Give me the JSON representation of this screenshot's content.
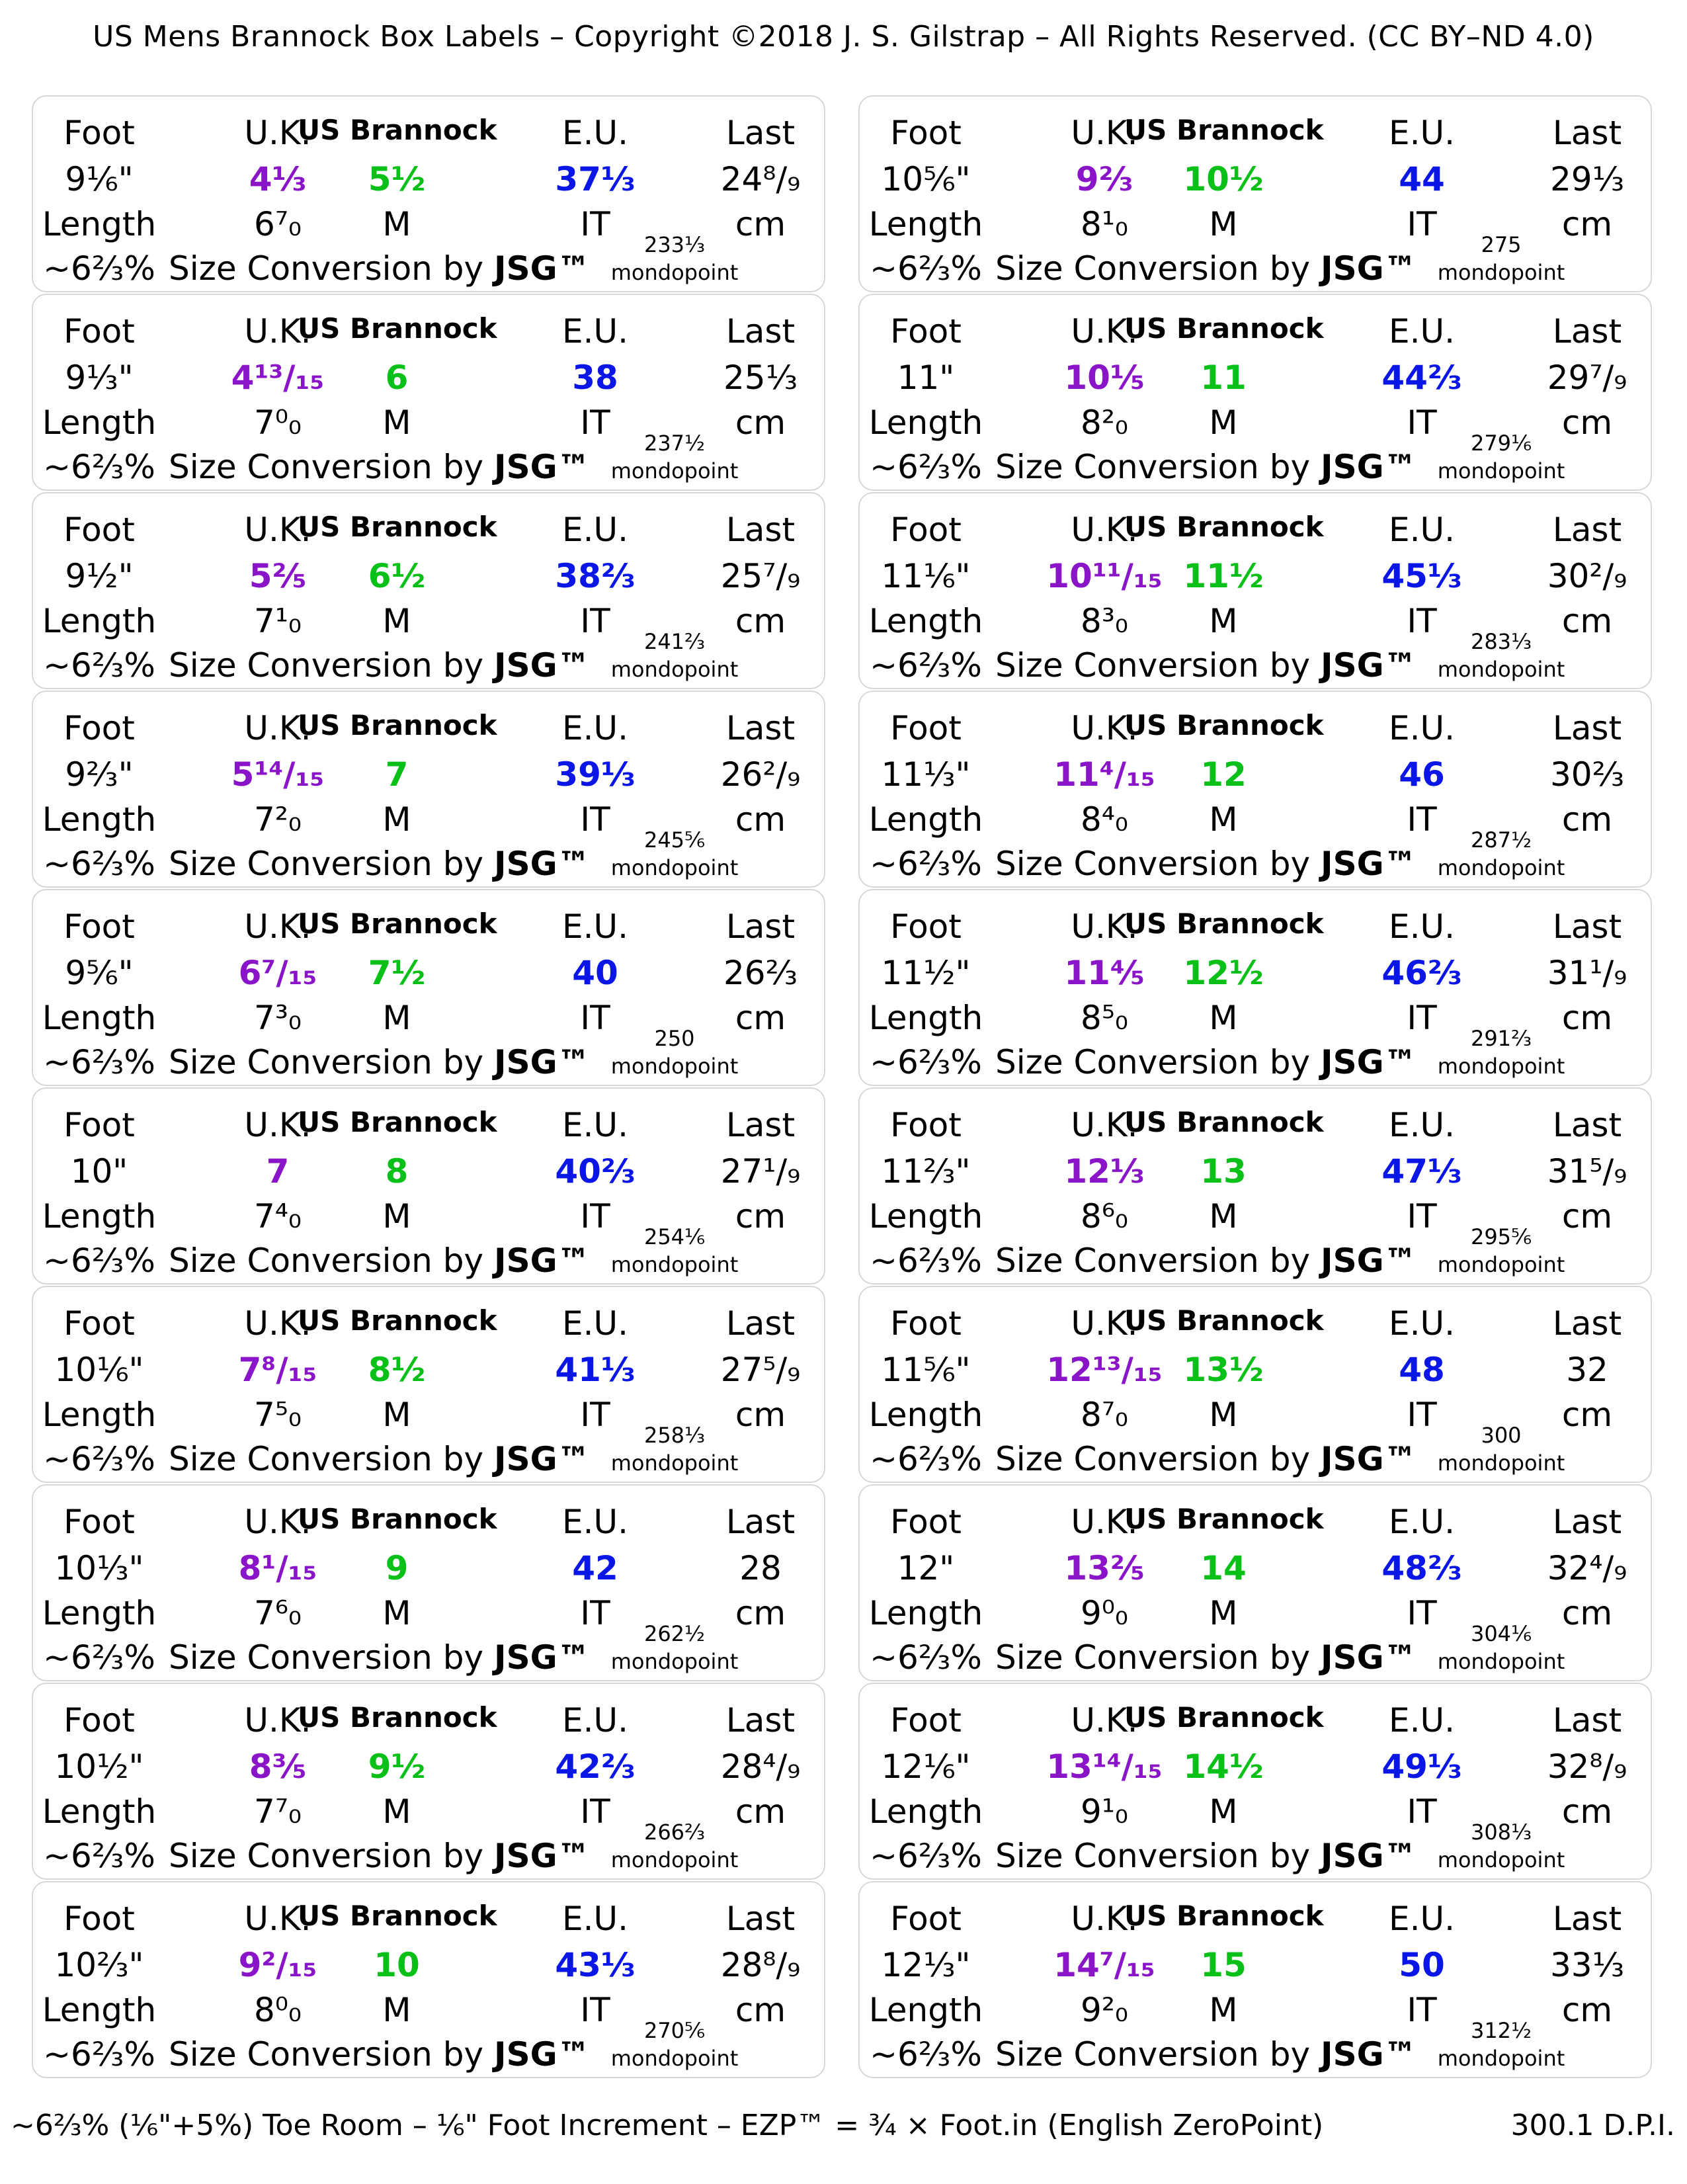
{
  "header": "US Mens Brannock Box Labels – Copyright ©2018  J. S. Gilstrap – All Rights Reserved. (CC BY–ND 4.0)",
  "footer": "~6⅔% (⅙\"+5%) Toe Room – ⅙\" Foot Increment – EZP™ = ¾ × Foot.in (English ZeroPoint)",
  "dpi": "300.1 D.P.I.",
  "common": {
    "foot": "Foot",
    "uk": "U.K.",
    "us_brannock": "US Brannock",
    "eu": "E.U.",
    "last": "Last",
    "length": "Length",
    "width": "M",
    "it": "IT",
    "cm": "cm",
    "toe_room": "~6⅔%",
    "size_conv": "Size Conversion by ",
    "jsg": "JSG™",
    "mondopoint": "mondopoint"
  },
  "colors": {
    "uk": "#8a15c8",
    "us": "#08c018",
    "eu": "#0a16e6",
    "border": "#d7d7d7"
  },
  "labels": [
    {
      "foot": "9⅙\"",
      "uk": "4⅓",
      "us": "5½",
      "eu": "37⅓",
      "last": "24⁸/₉",
      "ezp": "6⁷₀",
      "mondo": "233⅓"
    },
    {
      "foot": "10⅚\"",
      "uk": "9⅔",
      "us": "10½",
      "eu": "44",
      "last": "29⅓",
      "ezp": "8¹₀",
      "mondo": "275"
    },
    {
      "foot": "9⅓\"",
      "uk": "4¹³/₁₅",
      "us": "6",
      "eu": "38",
      "last": "25⅓",
      "ezp": "7⁰₀",
      "mondo": "237½"
    },
    {
      "foot": "11\"",
      "uk": "10⅕",
      "us": "11",
      "eu": "44⅔",
      "last": "29⁷/₉",
      "ezp": "8²₀",
      "mondo": "279⅙"
    },
    {
      "foot": "9½\"",
      "uk": "5⅖",
      "us": "6½",
      "eu": "38⅔",
      "last": "25⁷/₉",
      "ezp": "7¹₀",
      "mondo": "241⅔"
    },
    {
      "foot": "11⅙\"",
      "uk": "10¹¹/₁₅",
      "us": "11½",
      "eu": "45⅓",
      "last": "30²/₉",
      "ezp": "8³₀",
      "mondo": "283⅓"
    },
    {
      "foot": "9⅔\"",
      "uk": "5¹⁴/₁₅",
      "us": "7",
      "eu": "39⅓",
      "last": "26²/₉",
      "ezp": "7²₀",
      "mondo": "245⅚"
    },
    {
      "foot": "11⅓\"",
      "uk": "11⁴/₁₅",
      "us": "12",
      "eu": "46",
      "last": "30⅔",
      "ezp": "8⁴₀",
      "mondo": "287½"
    },
    {
      "foot": "9⅚\"",
      "uk": "6⁷/₁₅",
      "us": "7½",
      "eu": "40",
      "last": "26⅔",
      "ezp": "7³₀",
      "mondo": "250"
    },
    {
      "foot": "11½\"",
      "uk": "11⅘",
      "us": "12½",
      "eu": "46⅔",
      "last": "31¹/₉",
      "ezp": "8⁵₀",
      "mondo": "291⅔"
    },
    {
      "foot": "10\"",
      "uk": "7",
      "us": "8",
      "eu": "40⅔",
      "last": "27¹/₉",
      "ezp": "7⁴₀",
      "mondo": "254⅙"
    },
    {
      "foot": "11⅔\"",
      "uk": "12⅓",
      "us": "13",
      "eu": "47⅓",
      "last": "31⁵/₉",
      "ezp": "8⁶₀",
      "mondo": "295⅚"
    },
    {
      "foot": "10⅙\"",
      "uk": "7⁸/₁₅",
      "us": "8½",
      "eu": "41⅓",
      "last": "27⁵/₉",
      "ezp": "7⁵₀",
      "mondo": "258⅓"
    },
    {
      "foot": "11⅚\"",
      "uk": "12¹³/₁₅",
      "us": "13½",
      "eu": "48",
      "last": "32",
      "ezp": "8⁷₀",
      "mondo": "300"
    },
    {
      "foot": "10⅓\"",
      "uk": "8¹/₁₅",
      "us": "9",
      "eu": "42",
      "last": "28",
      "ezp": "7⁶₀",
      "mondo": "262½"
    },
    {
      "foot": "12\"",
      "uk": "13⅖",
      "us": "14",
      "eu": "48⅔",
      "last": "32⁴/₉",
      "ezp": "9⁰₀",
      "mondo": "304⅙"
    },
    {
      "foot": "10½\"",
      "uk": "8⅗",
      "us": "9½",
      "eu": "42⅔",
      "last": "28⁴/₉",
      "ezp": "7⁷₀",
      "mondo": "266⅔"
    },
    {
      "foot": "12⅙\"",
      "uk": "13¹⁴/₁₅",
      "us": "14½",
      "eu": "49⅓",
      "last": "32⁸/₉",
      "ezp": "9¹₀",
      "mondo": "308⅓"
    },
    {
      "foot": "10⅔\"",
      "uk": "9²/₁₅",
      "us": "10",
      "eu": "43⅓",
      "last": "28⁸/₉",
      "ezp": "8⁰₀",
      "mondo": "270⅚"
    },
    {
      "foot": "12⅓\"",
      "uk": "14⁷/₁₅",
      "us": "15",
      "eu": "50",
      "last": "33⅓",
      "ezp": "9²₀",
      "mondo": "312½"
    }
  ]
}
